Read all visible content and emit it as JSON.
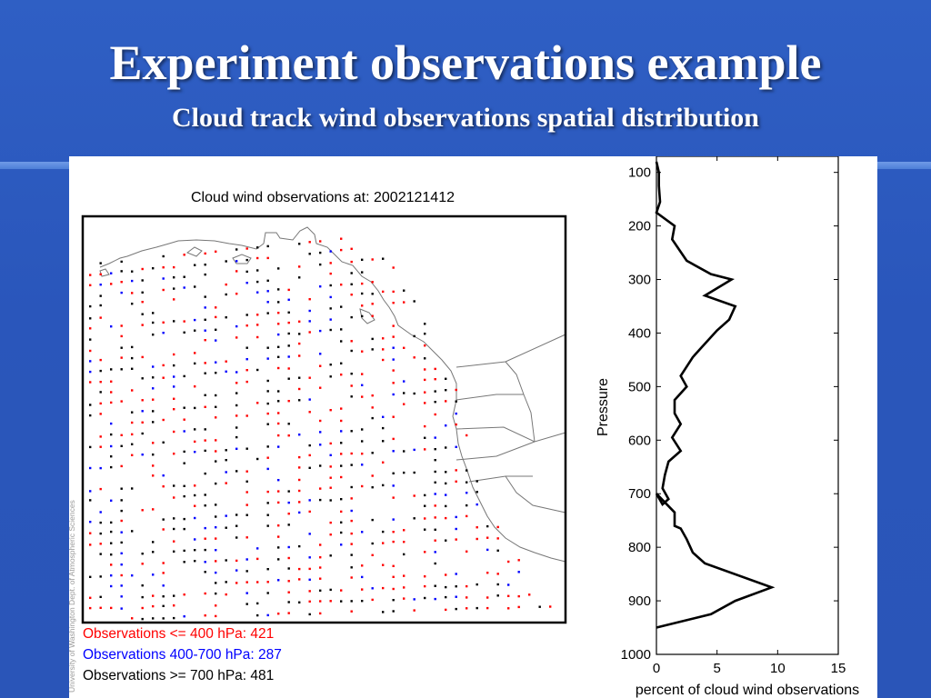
{
  "slide": {
    "title": "Experiment observations example",
    "subtitle": "Cloud track wind observations spatial distribution"
  },
  "map_panel": {
    "title": "Cloud wind observations at: 2002121412",
    "credit": "University of Washington Dept. of Atmospheric Sciences",
    "legend": [
      {
        "text": "Observations <= 400 hPa: 421",
        "color": "#ff0000"
      },
      {
        "text": "Observations 400-700 hPa: 287",
        "color": "#0000ff"
      },
      {
        "text": "Observations >= 700 hPa: 481",
        "color": "#000000"
      }
    ]
  },
  "chart_data": {
    "type": "line",
    "title": "",
    "xlabel": "percent of cloud wind observations",
    "ylabel": "Pressure",
    "xlim": [
      0,
      15
    ],
    "ylim": [
      1000,
      70
    ],
    "y_reversed": true,
    "xticks": [
      0,
      5,
      10,
      15
    ],
    "yticks": [
      100,
      200,
      300,
      400,
      500,
      600,
      700,
      800,
      900,
      1000
    ],
    "grid": false,
    "series": [
      {
        "x": [
          0.0,
          0.2,
          0.2,
          0.3,
          0.0,
          1.5,
          1.3,
          2.5,
          4.5,
          6.2,
          4.0,
          6.5,
          6.0,
          5.0,
          4.0,
          3.0,
          2.0,
          2.5,
          1.5,
          1.5,
          2.0,
          1.3,
          2.0,
          1.0,
          0.7,
          0.5,
          1.0,
          0.5,
          0.0,
          1.5,
          1.5,
          2.0,
          2.5,
          3.0,
          4.0,
          9.5,
          6.5,
          4.5,
          0.0
        ],
        "y": [
          80,
          100,
          125,
          155,
          175,
          200,
          225,
          265,
          290,
          300,
          330,
          350,
          375,
          395,
          420,
          445,
          480,
          500,
          525,
          550,
          570,
          595,
          620,
          640,
          665,
          690,
          710,
          720,
          700,
          735,
          760,
          765,
          785,
          810,
          830,
          875,
          900,
          925,
          950
        ]
      }
    ]
  }
}
